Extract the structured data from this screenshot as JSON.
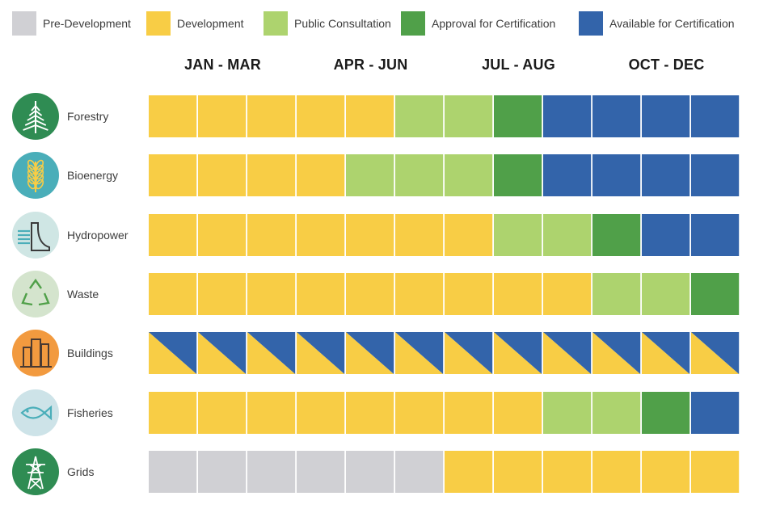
{
  "colors": {
    "pre_development": "#d0d0d4",
    "development": "#f8cd45",
    "public_consultation": "#add36e",
    "approval": "#50a049",
    "available": "#3364aa",
    "icon_green": "#2f8c53",
    "icon_teal": "#4aaeb9",
    "icon_mint": "#cfe6e4",
    "icon_sage": "#d4e4cd",
    "icon_orange": "#f29a3f",
    "icon_lightblue": "#cde3e8"
  },
  "legend": [
    {
      "key": "pre_development",
      "label": "Pre-Development"
    },
    {
      "key": "development",
      "label": "Development"
    },
    {
      "key": "public_consultation",
      "label": "Public Consultation"
    },
    {
      "key": "approval",
      "label": "Approval for Certification"
    },
    {
      "key": "available",
      "label": "Available for Certification"
    }
  ],
  "chart_data": {
    "type": "table",
    "periods": [
      "JAN - MAR",
      "APR - JUN",
      "JUL - AUG",
      "OCT - DEC"
    ],
    "columns_per_period": 3,
    "rows": [
      {
        "sector": "Forestry",
        "icon": "tree-icon",
        "cells": [
          "development",
          "development",
          "development",
          "development",
          "development",
          "public_consultation",
          "public_consultation",
          "approval",
          "available",
          "available",
          "available",
          "available"
        ]
      },
      {
        "sector": "Bioenergy",
        "icon": "wheat-icon",
        "cells": [
          "development",
          "development",
          "development",
          "development",
          "public_consultation",
          "public_consultation",
          "public_consultation",
          "approval",
          "available",
          "available",
          "available",
          "available"
        ]
      },
      {
        "sector": "Hydropower",
        "icon": "dam-icon",
        "cells": [
          "development",
          "development",
          "development",
          "development",
          "development",
          "development",
          "development",
          "public_consultation",
          "public_consultation",
          "approval",
          "available",
          "available"
        ]
      },
      {
        "sector": "Waste",
        "icon": "recycle-icon",
        "cells": [
          "development",
          "development",
          "development",
          "development",
          "development",
          "development",
          "development",
          "development",
          "development",
          "public_consultation",
          "public_consultation",
          "approval"
        ]
      },
      {
        "sector": "Buildings",
        "icon": "buildings-icon",
        "cells": [
          "development/available",
          "development/available",
          "development/available",
          "development/available",
          "development/available",
          "development/available",
          "development/available",
          "development/available",
          "development/available",
          "development/available",
          "development/available",
          "development/available"
        ]
      },
      {
        "sector": "Fisheries",
        "icon": "fish-icon",
        "cells": [
          "development",
          "development",
          "development",
          "development",
          "development",
          "development",
          "development",
          "development",
          "public_consultation",
          "public_consultation",
          "approval",
          "available"
        ]
      },
      {
        "sector": "Grids",
        "icon": "pylon-icon",
        "cells": [
          "pre_development",
          "pre_development",
          "pre_development",
          "pre_development",
          "pre_development",
          "pre_development",
          "development",
          "development",
          "development",
          "development",
          "development",
          "development"
        ]
      }
    ]
  }
}
